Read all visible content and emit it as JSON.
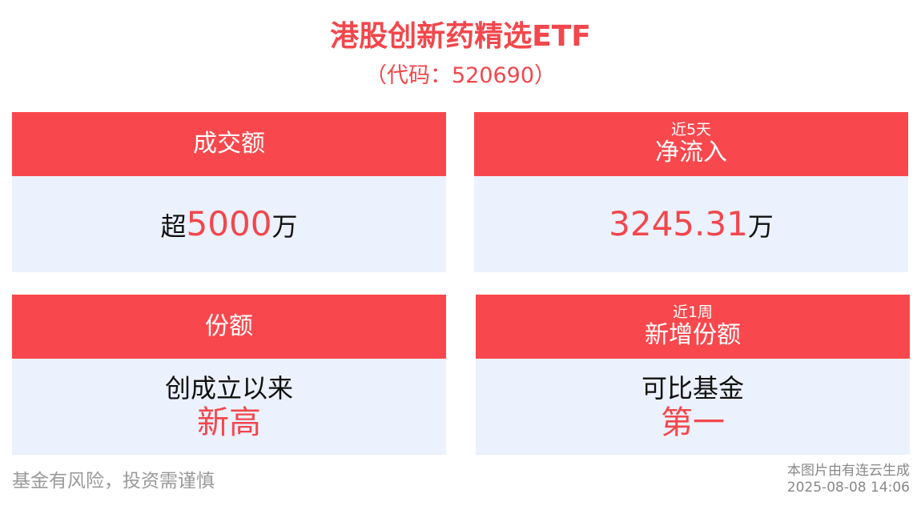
{
  "header": {
    "title": "港股创新药精选ETF",
    "subtitle": "（代码：520690）"
  },
  "cards": [
    {
      "label": "成交额",
      "prefix": "超",
      "value": "5000",
      "unit": "万"
    },
    {
      "label_small": "近5天",
      "label": "净流入",
      "value": "3245.31",
      "unit": "万"
    },
    {
      "label": "份额",
      "line1": "创成立以来",
      "line2": "新高"
    },
    {
      "label_small": "近1周",
      "label": "新增份额",
      "line1": "可比基金",
      "line2": "第一"
    }
  ],
  "footer": {
    "disclaimer": "基金有风险，投资需谨慎",
    "source": "本图片由有连云生成",
    "timestamp": "2025-08-08 14:06"
  },
  "colors": {
    "accent": "#f9484d",
    "card_body": "#ebf1fd",
    "text_red": "#f2474c"
  }
}
